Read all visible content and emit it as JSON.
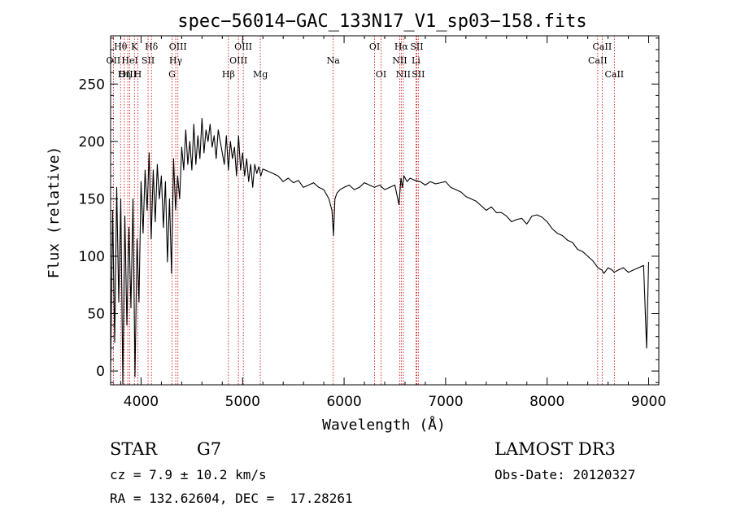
{
  "chart_data": {
    "type": "line",
    "title": "spec−56014−GAC_133N17_V1_sp03−158.fits",
    "xlabel": "Wavelength (Å)",
    "ylabel": "Flux (relative)",
    "xlim": [
      3700,
      9100
    ],
    "ylim": [
      -12,
      292
    ],
    "xticks": [
      4000,
      5000,
      6000,
      7000,
      8000,
      9000
    ],
    "yticks": [
      0,
      50,
      100,
      150,
      200,
      250
    ],
    "grid": false,
    "line_color": "#000000",
    "marker_color": "#cc0000",
    "series": [
      {
        "name": "flux",
        "x": [
          3700,
          3720,
          3740,
          3760,
          3780,
          3800,
          3820,
          3840,
          3860,
          3880,
          3900,
          3920,
          3940,
          3960,
          3980,
          4000,
          4020,
          4040,
          4060,
          4080,
          4100,
          4120,
          4140,
          4160,
          4180,
          4200,
          4220,
          4240,
          4260,
          4280,
          4300,
          4320,
          4340,
          4360,
          4380,
          4400,
          4420,
          4440,
          4460,
          4480,
          4500,
          4520,
          4540,
          4560,
          4580,
          4600,
          4620,
          4640,
          4660,
          4680,
          4700,
          4720,
          4740,
          4760,
          4780,
          4800,
          4820,
          4840,
          4860,
          4880,
          4900,
          4920,
          4940,
          4960,
          4980,
          5000,
          5020,
          5040,
          5060,
          5080,
          5100,
          5120,
          5140,
          5160,
          5180,
          5200,
          5250,
          5300,
          5350,
          5400,
          5450,
          5500,
          5550,
          5600,
          5650,
          5700,
          5750,
          5800,
          5850,
          5880,
          5895,
          5910,
          5930,
          5960,
          6000,
          6050,
          6100,
          6150,
          6200,
          6250,
          6300,
          6350,
          6400,
          6450,
          6500,
          6540,
          6560,
          6575,
          6590,
          6620,
          6650,
          6700,
          6750,
          6800,
          6850,
          6900,
          6950,
          7000,
          7050,
          7100,
          7150,
          7200,
          7250,
          7300,
          7350,
          7400,
          7450,
          7500,
          7550,
          7600,
          7650,
          7700,
          7750,
          7800,
          7850,
          7900,
          7950,
          8000,
          8050,
          8100,
          8150,
          8200,
          8250,
          8300,
          8350,
          8400,
          8450,
          8500,
          8540,
          8560,
          8600,
          8640,
          8660,
          8700,
          8750,
          8800,
          8850,
          8900,
          8950,
          8980,
          9000
        ],
        "y": [
          0,
          140,
          25,
          160,
          60,
          150,
          -15,
          135,
          40,
          125,
          55,
          150,
          -5,
          115,
          60,
          165,
          120,
          175,
          140,
          190,
          115,
          175,
          130,
          180,
          150,
          170,
          125,
          165,
          95,
          150,
          85,
          185,
          140,
          170,
          150,
          195,
          175,
          210,
          180,
          200,
          175,
          215,
          180,
          205,
          185,
          220,
          190,
          210,
          200,
          215,
          195,
          205,
          185,
          210,
          200,
          190,
          180,
          205,
          175,
          200,
          185,
          195,
          170,
          205,
          175,
          190,
          170,
          185,
          165,
          180,
          160,
          180,
          172,
          178,
          170,
          176,
          174,
          172,
          170,
          165,
          168,
          164,
          166,
          160,
          162,
          164,
          160,
          158,
          150,
          140,
          118,
          150,
          155,
          158,
          160,
          162,
          158,
          160,
          164,
          162,
          160,
          162,
          158,
          160,
          162,
          145,
          168,
          160,
          170,
          165,
          168,
          166,
          165,
          162,
          165,
          163,
          164,
          165,
          160,
          158,
          156,
          152,
          150,
          148,
          144,
          140,
          143,
          138,
          138,
          135,
          130,
          132,
          133,
          128,
          135,
          136,
          134,
          130,
          124,
          120,
          118,
          114,
          112,
          106,
          104,
          100,
          96,
          90,
          88,
          85,
          90,
          88,
          86,
          88,
          90,
          86,
          88,
          90,
          92,
          20,
          95
        ]
      }
    ],
    "line_markers": [
      {
        "label": "Hθ",
        "wavelength": 3798,
        "row": 1
      },
      {
        "label": "OII",
        "wavelength": 3727,
        "row": 2
      },
      {
        "label": "OIII",
        "wavelength": 3869,
        "row": 3
      },
      {
        "label": "HeI",
        "wavelength": 3889,
        "row": 2
      },
      {
        "label": "Hη",
        "wavelength": 3835,
        "row": 3
      },
      {
        "label": "K",
        "wavelength": 3934,
        "row": 1
      },
      {
        "label": "SII",
        "wavelength": 4069,
        "row": 2
      },
      {
        "label": "H",
        "wavelength": 3968,
        "row": 3
      },
      {
        "label": "Hδ",
        "wavelength": 4102,
        "row": 1
      },
      {
        "label": "OIII",
        "wavelength": 4363,
        "row": 1
      },
      {
        "label": "Hγ",
        "wavelength": 4341,
        "row": 2
      },
      {
        "label": "G",
        "wavelength": 4305,
        "row": 3
      },
      {
        "label": "Hβ",
        "wavelength": 4861,
        "row": 3
      },
      {
        "label": "OIII",
        "wavelength": 5007,
        "row": 1
      },
      {
        "label": "OIII",
        "wavelength": 4959,
        "row": 2
      },
      {
        "label": "Mg",
        "wavelength": 5175,
        "row": 3
      },
      {
        "label": "Na",
        "wavelength": 5893,
        "row": 2
      },
      {
        "label": "OI",
        "wavelength": 6300,
        "row": 1
      },
      {
        "label": "OI",
        "wavelength": 6364,
        "row": 3
      },
      {
        "label": "Hα",
        "wavelength": 6563,
        "row": 1
      },
      {
        "label": "SII",
        "wavelength": 6716,
        "row": 1
      },
      {
        "label": "NII",
        "wavelength": 6548,
        "row": 2
      },
      {
        "label": "Li",
        "wavelength": 6708,
        "row": 2
      },
      {
        "label": "NII",
        "wavelength": 6583,
        "row": 3
      },
      {
        "label": "SII",
        "wavelength": 6731,
        "row": 3
      },
      {
        "label": "CaII",
        "wavelength": 8542,
        "row": 1
      },
      {
        "label": "CaII",
        "wavelength": 8498,
        "row": 2
      },
      {
        "label": "CaII",
        "wavelength": 8662,
        "row": 3
      }
    ]
  },
  "info": {
    "object_class": "STAR",
    "subclass": "G7",
    "survey": "LAMOST DR3",
    "redshift": "cz = 7.9 ± 10.2 km/s",
    "obs_date": "Obs-Date: 20120327",
    "coords": "RA = 132.62604, DEC =  17.28261"
  }
}
